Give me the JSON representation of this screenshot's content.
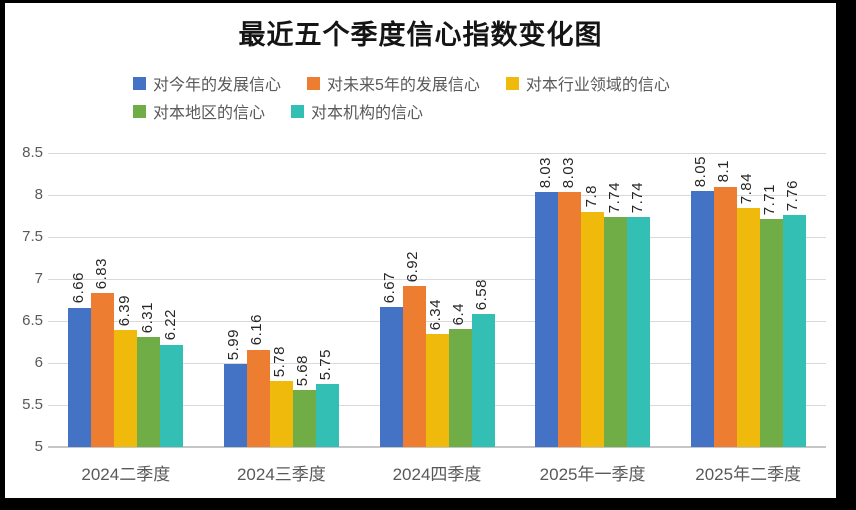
{
  "title": "最近五个季度信心指数变化图",
  "chart_data": {
    "type": "bar",
    "title": "最近五个季度信心指数变化图",
    "categories": [
      "2024二季度",
      "2024三季度",
      "2024四季度",
      "2025年一季度",
      "2025年二季度"
    ],
    "series": [
      {
        "name": "对今年的发展信心",
        "color": "#4472C4",
        "values": [
          6.66,
          5.99,
          6.67,
          8.03,
          8.05
        ]
      },
      {
        "name": "对未来5年的发展信心",
        "color": "#ED7D31",
        "values": [
          6.83,
          6.16,
          6.92,
          8.03,
          8.1
        ]
      },
      {
        "name": "对本行业领域的信心",
        "color": "#F0BA0C",
        "values": [
          6.39,
          5.78,
          6.34,
          7.8,
          7.84
        ]
      },
      {
        "name": "对本地区的信心",
        "color": "#70AD47",
        "values": [
          6.31,
          5.68,
          6.4,
          7.74,
          7.71
        ]
      },
      {
        "name": "对本机构的信心",
        "color": "#33BFB3",
        "values": [
          6.22,
          5.75,
          6.58,
          7.74,
          7.76
        ]
      }
    ],
    "ylim": [
      5,
      8.5
    ],
    "ytick_step": 0.5,
    "yticks": [
      "8.5",
      "8",
      "7.5",
      "7",
      "6.5",
      "6",
      "5.5",
      "5"
    ],
    "grid": true,
    "legend_position": "top",
    "legend_rows": [
      [
        0,
        1,
        2
      ],
      [
        3,
        4
      ]
    ],
    "data_labels": "rotated-90",
    "colors": {
      "grid": "#d9d9d9",
      "axis": "#c6c6c6",
      "tick_text": "#595959",
      "data_label_text": "#262626",
      "title_text": "#151515",
      "frame": "#000000",
      "background": "#ffffff"
    }
  }
}
